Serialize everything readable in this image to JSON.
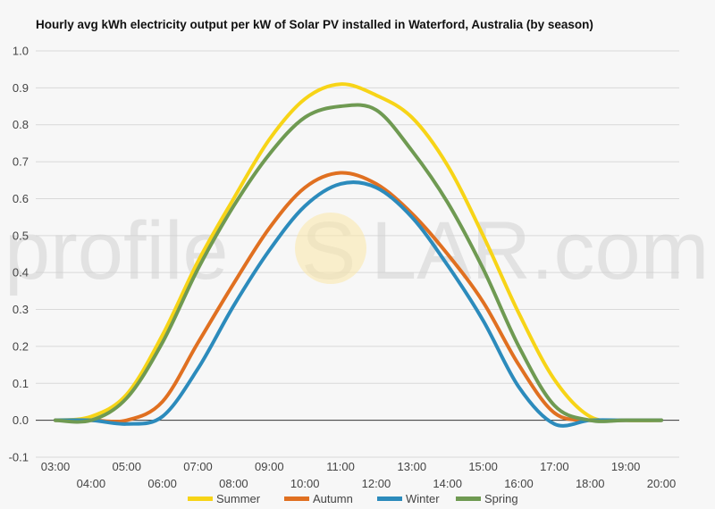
{
  "chart_data": {
    "type": "line",
    "title": "Hourly avg kWh electricity output per kW of Solar PV installed in Waterford, Australia (by season)",
    "watermark": [
      "profile",
      "S",
      "LAR.com"
    ],
    "x": [
      "03:00",
      "04:00",
      "05:00",
      "06:00",
      "07:00",
      "08:00",
      "09:00",
      "10:00",
      "11:00",
      "12:00",
      "13:00",
      "14:00",
      "15:00",
      "16:00",
      "17:00",
      "18:00",
      "19:00",
      "20:00"
    ],
    "xlim": [
      "03:00",
      "20:00"
    ],
    "ylim": [
      -0.1,
      1.0
    ],
    "yticks": [
      "-0.1",
      "0.0",
      "0.1",
      "0.2",
      "0.3",
      "0.4",
      "0.5",
      "0.6",
      "0.7",
      "0.8",
      "0.9",
      "1.0"
    ],
    "grid": true,
    "legend_position": "bottom",
    "series": [
      {
        "name": "Summer",
        "color": "#f7d417",
        "values": [
          0.0,
          0.01,
          0.07,
          0.23,
          0.43,
          0.6,
          0.76,
          0.87,
          0.91,
          0.88,
          0.82,
          0.69,
          0.5,
          0.29,
          0.11,
          0.01,
          0.0,
          0.0
        ]
      },
      {
        "name": "Autumn",
        "color": "#e07021",
        "values": [
          0.0,
          0.0,
          0.0,
          0.05,
          0.21,
          0.37,
          0.52,
          0.63,
          0.67,
          0.64,
          0.56,
          0.45,
          0.32,
          0.15,
          0.02,
          0.0,
          0.0,
          0.0
        ]
      },
      {
        "name": "Winter",
        "color": "#2c8bbc",
        "values": [
          0.0,
          0.0,
          -0.01,
          0.01,
          0.14,
          0.31,
          0.46,
          0.58,
          0.64,
          0.63,
          0.55,
          0.42,
          0.27,
          0.09,
          -0.01,
          0.0,
          0.0,
          0.0
        ]
      },
      {
        "name": "Spring",
        "color": "#6f9a52",
        "values": [
          0.0,
          0.0,
          0.06,
          0.21,
          0.41,
          0.58,
          0.72,
          0.82,
          0.85,
          0.84,
          0.73,
          0.59,
          0.41,
          0.2,
          0.04,
          0.0,
          0.0,
          0.0
        ]
      }
    ]
  }
}
